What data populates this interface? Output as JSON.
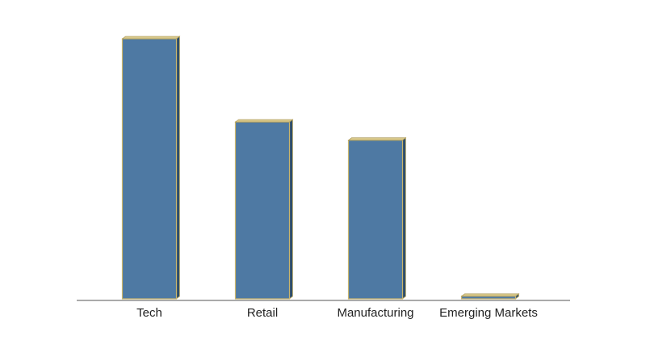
{
  "chart_data": {
    "type": "bar",
    "categories": [
      "Tech",
      "Retail",
      "Manufacturing",
      "Emerging Markets"
    ],
    "values": [
      100,
      68,
      61,
      1
    ],
    "color": "#4e79a3",
    "ylim": [
      0,
      100
    ]
  }
}
